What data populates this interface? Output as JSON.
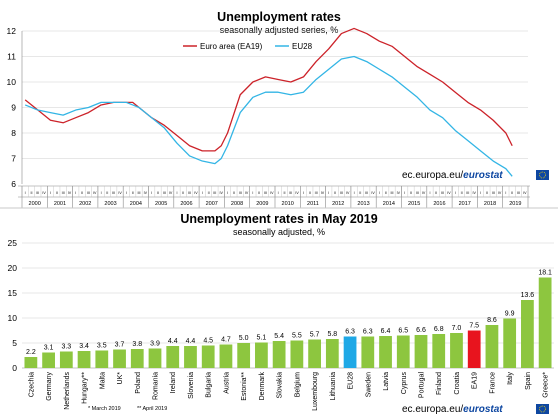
{
  "colors": {
    "euro_area": "#cc2229",
    "eu28": "#33b5e5",
    "bar_green": "#8dc63f",
    "bar_eu28": "#1fa8e6",
    "bar_ea19": "#e8141e",
    "grid": "#d0d0d0",
    "eurostat_blue": "#0e47a1"
  },
  "chart_data": [
    {
      "type": "line",
      "title": "Unemployment rates",
      "subtitle": "seasonally adjusted series, %",
      "ylim": [
        6,
        12
      ],
      "yticks": [
        6,
        7,
        8,
        9,
        10,
        11,
        12
      ],
      "years": [
        "2000",
        "2001",
        "2002",
        "2003",
        "2004",
        "2005",
        "2006",
        "2007",
        "2008",
        "2009",
        "2010",
        "2011",
        "2012",
        "2013",
        "2014",
        "2015",
        "2016",
        "2017",
        "2018",
        "2019"
      ],
      "quarter_labels": [
        "I",
        "II",
        "III",
        "IV"
      ],
      "legend_position": "top-center",
      "x_quarter_index": [
        0,
        2,
        4,
        6,
        8,
        10,
        12,
        14,
        16,
        17,
        18,
        20,
        22,
        24,
        26,
        28,
        30,
        31,
        32,
        34,
        36,
        38,
        40,
        42,
        44,
        46,
        48,
        50,
        52,
        54,
        56,
        58,
        60,
        62,
        64,
        66,
        68,
        70,
        72,
        74,
        76,
        77
      ],
      "series": [
        {
          "name": "Euro area (EA19)",
          "values": [
            9.3,
            8.9,
            8.5,
            8.4,
            8.6,
            8.8,
            9.1,
            9.2,
            9.2,
            9.2,
            9.0,
            8.6,
            8.3,
            7.9,
            7.5,
            7.3,
            7.3,
            7.5,
            8.0,
            9.5,
            10.0,
            10.2,
            10.1,
            10.0,
            10.2,
            10.8,
            11.3,
            11.9,
            12.1,
            11.9,
            11.6,
            11.4,
            11.0,
            10.6,
            10.3,
            10.0,
            9.6,
            9.2,
            8.9,
            8.5,
            8.0,
            7.5
          ]
        },
        {
          "name": "EU28",
          "values": [
            9.1,
            8.9,
            8.8,
            8.7,
            8.9,
            9.0,
            9.2,
            9.2,
            9.2,
            9.1,
            9.0,
            8.6,
            8.2,
            7.6,
            7.1,
            6.9,
            6.8,
            7.0,
            7.5,
            8.8,
            9.4,
            9.6,
            9.6,
            9.5,
            9.6,
            10.1,
            10.5,
            10.9,
            11.0,
            10.8,
            10.5,
            10.2,
            9.8,
            9.4,
            8.9,
            8.6,
            8.1,
            7.7,
            7.3,
            6.9,
            6.6,
            6.3
          ]
        }
      ],
      "source_label": "ec.europa.eu/",
      "source_brand": "eurostat"
    },
    {
      "type": "bar",
      "title": "Unemployment rates in May 2019",
      "subtitle": "seasonally adjusted, %",
      "ylim": [
        0,
        25
      ],
      "yticks": [
        0,
        5,
        10,
        15,
        20,
        25
      ],
      "categories": [
        "Czechia",
        "Germany",
        "Netherlands",
        "Hungary**",
        "Malta",
        "UK*",
        "Poland",
        "Romania",
        "Ireland",
        "Slovenia",
        "Bulgaria",
        "Austria",
        "Estonia**",
        "Denmark",
        "Slovakia",
        "Belgium",
        "Luxembourg",
        "Lithuania",
        "EU28",
        "Sweden",
        "Latvia",
        "Cyprus",
        "Portugal",
        "Finland",
        "Croatia",
        "EA19",
        "France",
        "Italy",
        "Spain",
        "Greece*"
      ],
      "values": [
        2.2,
        3.1,
        3.3,
        3.4,
        3.5,
        3.7,
        3.8,
        3.9,
        4.4,
        4.4,
        4.5,
        4.7,
        5.0,
        5.1,
        5.4,
        5.5,
        5.7,
        5.8,
        6.3,
        6.3,
        6.4,
        6.5,
        6.6,
        6.8,
        7.0,
        7.5,
        8.6,
        9.9,
        13.6,
        18.1
      ],
      "value_labels": [
        "2.2",
        "3.1",
        "3.3",
        "3.4",
        "3.5",
        "3.7",
        "3.8",
        "3.9",
        "4.4",
        "4.4",
        "4.5",
        "4.7",
        "5.0",
        "5.1",
        "5.4",
        "5.5",
        "5.7",
        "5.8",
        "6.3",
        "6.3",
        "6.4",
        "6.5",
        "6.6",
        "6.8",
        "7.0",
        "7.5",
        "8.6",
        "9.9",
        "13.6",
        "18.1"
      ],
      "highlight": {
        "EU28": "bar_eu28",
        "EA19": "bar_ea19"
      },
      "footnotes": [
        "* March 2019",
        "** April 2019"
      ],
      "source_label": "ec.europa.eu/",
      "source_brand": "eurostat"
    }
  ]
}
